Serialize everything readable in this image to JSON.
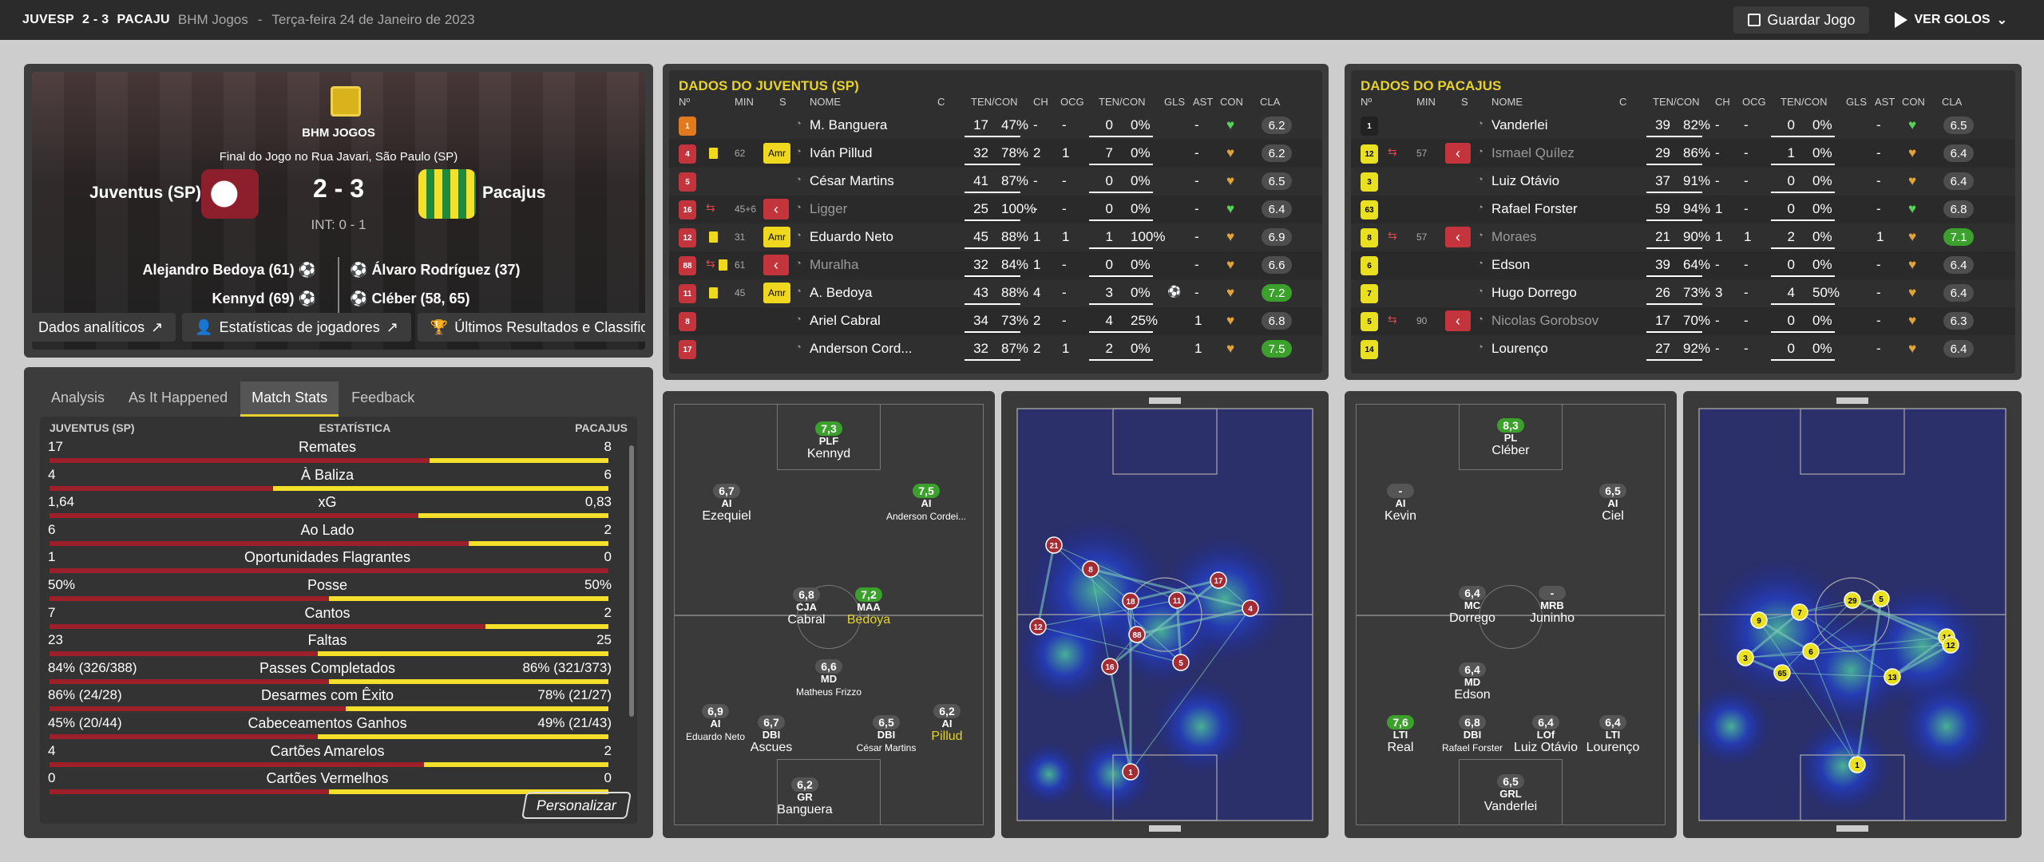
{
  "topbar": {
    "home": "JUVESP",
    "score": "2 - 3",
    "away": "PACAJU",
    "competition": "BHM Jogos",
    "separator": "-",
    "date": "Terça-feira 24 de Janeiro de 2023",
    "save": "Guardar Jogo",
    "view": "VER GOLOS"
  },
  "header": {
    "competition": "BHM JOGOS",
    "venue": "Final do Jogo no Rua Javari, São Paulo (SP)",
    "home": "Juventus (SP)",
    "away": "Pacajus",
    "score": "2 - 3",
    "ht": "INT: 0 - 1",
    "home_scorers": [
      "Alejandro Bedoya (61)",
      "Kennyd (69)"
    ],
    "away_scorers": [
      "Álvaro Rodríguez (37)",
      "Cléber (58, 65)"
    ],
    "tabs": [
      "Dados analíticos",
      "Estatísticas de jogadores",
      "Últimos Resultados e Classificação"
    ]
  },
  "stats": {
    "tabs": [
      "Analysis",
      "As It Happened",
      "Match Stats",
      "Feedback"
    ],
    "head_home": "JUVENTUS (SP)",
    "head_center": "ESTATÍSTICA",
    "head_away": "PACAJUS",
    "button": "Personalizar",
    "rows": [
      {
        "h": "17",
        "label": "Remates",
        "a": "8",
        "frac": 0.68
      },
      {
        "h": "4",
        "label": "À Baliza",
        "a": "6",
        "frac": 0.4
      },
      {
        "h": "1,64",
        "label": "xG",
        "a": "0,83",
        "frac": 0.66
      },
      {
        "h": "6",
        "label": "Ao Lado",
        "a": "2",
        "frac": 0.75
      },
      {
        "h": "1",
        "label": "Oportunidades Flagrantes",
        "a": "0",
        "frac": 1.0
      },
      {
        "h": "50%",
        "label": "Posse",
        "a": "50%",
        "frac": 0.5
      },
      {
        "h": "7",
        "label": "Cantos",
        "a": "2",
        "frac": 0.78
      },
      {
        "h": "23",
        "label": "Faltas",
        "a": "25",
        "frac": 0.48
      },
      {
        "h": "84% (326/388)",
        "label": "Passes Completados",
        "a": "86% (321/373)",
        "frac": 0.5
      },
      {
        "h": "86% (24/28)",
        "label": "Desarmes com Êxito",
        "a": "78% (21/27)",
        "frac": 0.53
      },
      {
        "h": "45% (20/44)",
        "label": "Cabeceamentos Ganhos",
        "a": "49% (21/43)",
        "frac": 0.48
      },
      {
        "h": "4",
        "label": "Cartões Amarelos",
        "a": "2",
        "frac": 0.67
      },
      {
        "h": "0",
        "label": "Cartões Vermelhos",
        "a": "0",
        "frac": 0.5
      }
    ]
  },
  "home_table": {
    "title": "DADOS DO JUVENTUS (SP)",
    "cols": [
      "Nº",
      "MIN",
      "S",
      "NOME",
      "C",
      "TEN/CON",
      "CH",
      "OCG",
      "TEN/CON",
      "GLS",
      "AST",
      "CON",
      "CLA"
    ],
    "rows": [
      {
        "num": "1",
        "min": "",
        "sub": "",
        "name": "M. Banguera",
        "tc": "17",
        "tcp": "47%",
        "ch": "-",
        "ocg": "-",
        "t2": "0",
        "t2p": "0%",
        "gls": "",
        "ast": "-",
        "rate": "6.2",
        "g": false,
        "card": "",
        "dim": false,
        "sc": "#e07a1c"
      },
      {
        "num": "4",
        "min": "62",
        "sub": "amr",
        "name": "Iván Pillud",
        "tc": "32",
        "tcp": "78%",
        "ch": "2",
        "ocg": "1",
        "t2": "7",
        "t2p": "0%",
        "gls": "",
        "ast": "-",
        "rate": "6.2",
        "g": false,
        "card": "y",
        "dim": false,
        "sc": "#c3343c"
      },
      {
        "num": "5",
        "min": "",
        "sub": "",
        "name": "César Martins",
        "tc": "41",
        "tcp": "87%",
        "ch": "-",
        "ocg": "-",
        "t2": "0",
        "t2p": "0%",
        "gls": "",
        "ast": "-",
        "rate": "6.5",
        "g": false,
        "card": "",
        "dim": false,
        "sc": "#c3343c"
      },
      {
        "num": "16",
        "min": "45+6",
        "sub": "off",
        "name": "Ligger",
        "tc": "25",
        "tcp": "100%",
        "ch": "-",
        "ocg": "-",
        "t2": "0",
        "t2p": "0%",
        "gls": "",
        "ast": "-",
        "rate": "6.4",
        "g": false,
        "card": "",
        "dim": true,
        "sc": "#c3343c"
      },
      {
        "num": "12",
        "min": "31",
        "sub": "amr",
        "name": "Eduardo Neto",
        "tc": "45",
        "tcp": "88%",
        "ch": "1",
        "ocg": "1",
        "t2": "1",
        "t2p": "100%",
        "gls": "",
        "ast": "-",
        "rate": "6.9",
        "g": false,
        "card": "y",
        "dim": false,
        "sc": "#c3343c"
      },
      {
        "num": "88",
        "min": "61",
        "sub": "off",
        "name": "Muralha",
        "tc": "32",
        "tcp": "84%",
        "ch": "1",
        "ocg": "-",
        "t2": "0",
        "t2p": "0%",
        "gls": "",
        "ast": "-",
        "rate": "6.6",
        "g": false,
        "card": "y",
        "dim": true,
        "sc": "#c3343c"
      },
      {
        "num": "11",
        "min": "45",
        "sub": "amr",
        "name": "A. Bedoya",
        "tc": "43",
        "tcp": "88%",
        "ch": "4",
        "ocg": "-",
        "t2": "3",
        "t2p": "0%",
        "gls": "⚽",
        "ast": "-",
        "rate": "7.2",
        "g": true,
        "card": "y",
        "dim": false,
        "sc": "#c3343c"
      },
      {
        "num": "8",
        "min": "",
        "sub": "",
        "name": "Ariel Cabral",
        "tc": "34",
        "tcp": "73%",
        "ch": "2",
        "ocg": "-",
        "t2": "4",
        "t2p": "25%",
        "gls": "",
        "ast": "1",
        "rate": "6.8",
        "g": false,
        "card": "",
        "dim": false,
        "sc": "#c3343c"
      },
      {
        "num": "17",
        "min": "",
        "sub": "",
        "name": "Anderson Cord...",
        "tc": "32",
        "tcp": "87%",
        "ch": "2",
        "ocg": "1",
        "t2": "2",
        "t2p": "0%",
        "gls": "",
        "ast": "1",
        "rate": "7.5",
        "g": true,
        "card": "",
        "dim": false,
        "sc": "#c3343c"
      }
    ]
  },
  "away_table": {
    "title": "DADOS DO PACAJUS",
    "cols": [
      "Nº",
      "MIN",
      "S",
      "NOME",
      "C",
      "TEN/CON",
      "CH",
      "OCG",
      "TEN/CON",
      "GLS",
      "AST",
      "CON",
      "CLA"
    ],
    "rows": [
      {
        "num": "1",
        "min": "",
        "sub": "",
        "name": "Vanderlei",
        "tc": "39",
        "tcp": "82%",
        "ch": "-",
        "ocg": "-",
        "t2": "0",
        "t2p": "0%",
        "ast": "-",
        "rate": "6.5",
        "g": false,
        "dim": false,
        "sc": "#222"
      },
      {
        "num": "12",
        "min": "57",
        "sub": "off",
        "name": "Ismael Quílez",
        "tc": "29",
        "tcp": "86%",
        "ch": "-",
        "ocg": "-",
        "t2": "1",
        "t2p": "0%",
        "ast": "-",
        "rate": "6.4",
        "g": false,
        "dim": true,
        "sc": "#e8e021"
      },
      {
        "num": "3",
        "min": "",
        "sub": "",
        "name": "Luiz Otávio",
        "tc": "37",
        "tcp": "91%",
        "ch": "-",
        "ocg": "-",
        "t2": "0",
        "t2p": "0%",
        "ast": "-",
        "rate": "6.4",
        "g": false,
        "dim": false,
        "sc": "#e8e021"
      },
      {
        "num": "63",
        "min": "",
        "sub": "",
        "name": "Rafael Forster",
        "tc": "59",
        "tcp": "94%",
        "ch": "1",
        "ocg": "-",
        "t2": "0",
        "t2p": "0%",
        "ast": "-",
        "rate": "6.8",
        "g": false,
        "dim": false,
        "sc": "#e8e021"
      },
      {
        "num": "8",
        "min": "57",
        "sub": "off",
        "name": "Moraes",
        "tc": "21",
        "tcp": "90%",
        "ch": "1",
        "ocg": "1",
        "t2": "2",
        "t2p": "0%",
        "ast": "1",
        "rate": "7.1",
        "g": true,
        "dim": true,
        "sc": "#e8e021"
      },
      {
        "num": "6",
        "min": "",
        "sub": "",
        "name": "Edson",
        "tc": "39",
        "tcp": "64%",
        "ch": "-",
        "ocg": "-",
        "t2": "0",
        "t2p": "0%",
        "ast": "-",
        "rate": "6.4",
        "g": false,
        "dim": false,
        "sc": "#e8e021"
      },
      {
        "num": "7",
        "min": "",
        "sub": "",
        "name": "Hugo Dorrego",
        "tc": "26",
        "tcp": "73%",
        "ch": "3",
        "ocg": "-",
        "t2": "4",
        "t2p": "50%",
        "ast": "-",
        "rate": "6.4",
        "g": false,
        "dim": false,
        "sc": "#e8e021"
      },
      {
        "num": "5",
        "min": "90",
        "sub": "off",
        "name": "Nicolas Gorobsov",
        "tc": "17",
        "tcp": "70%",
        "ch": "-",
        "ocg": "-",
        "t2": "0",
        "t2p": "0%",
        "ast": "-",
        "rate": "6.3",
        "g": false,
        "dim": true,
        "sc": "#e8e021"
      },
      {
        "num": "14",
        "min": "",
        "sub": "",
        "name": "Lourenço",
        "tc": "27",
        "tcp": "92%",
        "ch": "-",
        "ocg": "-",
        "t2": "0",
        "t2p": "0%",
        "ast": "-",
        "rate": "6.4",
        "g": false,
        "dim": false,
        "sc": "#e8e021"
      }
    ]
  },
  "home_formation": [
    {
      "r": "7,3",
      "p": "PLF",
      "n": "Kennyd",
      "g": true
    },
    {
      "r": "6,7",
      "p": "AI",
      "n": "Ezequiel"
    },
    {
      "r": "7,5",
      "p": "AI",
      "n": "Anderson Cordei...",
      "g": true,
      "s": true
    },
    {
      "r": "6,8",
      "p": "CJA",
      "n": "Cabral"
    },
    {
      "r": "7,2",
      "p": "MAA",
      "n": "Bedoya",
      "g": true,
      "y": true
    },
    {
      "r": "6,6",
      "p": "MD",
      "n": "Matheus Frizzo",
      "s": true
    },
    {
      "r": "6,9",
      "p": "AI",
      "n": "Eduardo Neto",
      "s": true
    },
    {
      "r": "6,7",
      "p": "DBI",
      "n": "Ascues"
    },
    {
      "r": "6,5",
      "p": "DBI",
      "n": "César Martins",
      "s": true
    },
    {
      "r": "6,2",
      "p": "AI",
      "n": "Pillud",
      "y": true
    },
    {
      "r": "6,2",
      "p": "GR",
      "n": "Banguera"
    }
  ],
  "away_formation": [
    {
      "r": "8,3",
      "p": "PL",
      "n": "Cléber",
      "g": true
    },
    {
      "r": "-",
      "p": "AI",
      "n": "Kevin"
    },
    {
      "r": "6,5",
      "p": "AI",
      "n": "Ciel"
    },
    {
      "r": "6,4",
      "p": "MC",
      "n": "Dorrego"
    },
    {
      "r": "-",
      "p": "MRB",
      "n": "Juninho"
    },
    {
      "r": "6,4",
      "p": "MD",
      "n": "Edson"
    },
    {
      "r": "7,6",
      "p": "LTI",
      "n": "Real",
      "g": true
    },
    {
      "r": "6,8",
      "p": "DBI",
      "n": "Rafael Forster",
      "s": true
    },
    {
      "r": "6,4",
      "p": "LOf",
      "n": "Luiz Otávio"
    },
    {
      "r": "6,4",
      "p": "LTI",
      "n": "Lourenço"
    },
    {
      "r": "6,5",
      "p": "GRL",
      "n": "Vanderlei"
    }
  ],
  "home_nodes": [
    "21",
    "8",
    "18",
    "11",
    "17",
    "4",
    "12",
    "88",
    "16",
    "5",
    "1"
  ],
  "away_nodes": [
    "9",
    "7",
    "29",
    "5",
    "14",
    "3",
    "6",
    "65",
    "13",
    "1",
    "12"
  ],
  "colors": {
    "accent": "#e6d22b",
    "home": "#9d1f2a",
    "away": "#f4e02a",
    "good": "#3ca12c"
  }
}
